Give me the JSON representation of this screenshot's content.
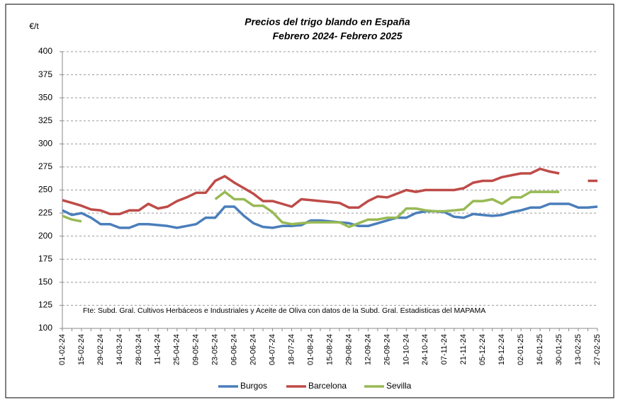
{
  "chart_data": {
    "type": "line",
    "title": "Precios del trigo blando en España",
    "subtitle": "Febrero 2024- Febrero 2025",
    "y_label": "€/t",
    "annotation": "Fte: Subd. Gral. Cultivos Herbáceos e Industriales y Aceite de Oliva  con datos de la Subd. Gral. Estadisticas del MAPAMA",
    "categories": [
      "01-02-24",
      null,
      "15-02-24",
      null,
      "29-02-24",
      null,
      "14-03-24",
      null,
      "28-03-24",
      null,
      "11-04-24",
      null,
      "25-04-24",
      null,
      "09-05-24",
      null,
      "23-05-24",
      null,
      "06-06-24",
      null,
      "20-06-24",
      null,
      "04-07-24",
      null,
      "18-07-24",
      null,
      "01-08-24",
      null,
      "15-08-24",
      null,
      "29-08-24",
      null,
      "12-09-24",
      null,
      "26-09-24",
      null,
      "10-10-24",
      null,
      "24-10-24",
      null,
      "07-11-24",
      null,
      "21-11-24",
      null,
      "05-12-24",
      null,
      "19-12-24",
      null,
      "02-01-25",
      null,
      "16-01-25",
      null,
      "30-01-25",
      null,
      "13-02-25",
      null,
      "27-02-25"
    ],
    "series": [
      {
        "name": "Burgos",
        "color": "#4a7ebb",
        "values": [
          228,
          223,
          225,
          220,
          213,
          213,
          209,
          209,
          213,
          213,
          212,
          211,
          209,
          211,
          213,
          220,
          220,
          232,
          232,
          222,
          214,
          210,
          209,
          211,
          211,
          212,
          217,
          217,
          216,
          215,
          214,
          211,
          211,
          214,
          217,
          220,
          220,
          225,
          227,
          227,
          226,
          221,
          220,
          224,
          223,
          222,
          223,
          226,
          228,
          231,
          231,
          235,
          235,
          235,
          231,
          231,
          232
        ]
      },
      {
        "name": "Barcelona",
        "color": "#be4b48",
        "values": [
          239,
          236,
          233,
          229,
          228,
          224,
          224,
          228,
          228,
          235,
          230,
          232,
          238,
          242,
          247,
          247,
          260,
          265,
          258,
          252,
          246,
          238,
          238,
          235,
          232,
          240,
          239,
          238,
          237,
          236,
          231,
          231,
          238,
          243,
          242,
          246,
          250,
          248,
          250,
          250,
          250,
          250,
          252,
          258,
          260,
          260,
          264,
          266,
          268,
          268,
          273,
          270,
          268,
          null,
          null,
          260,
          260
        ]
      },
      {
        "name": "Sevilla",
        "color": "#98b954",
        "values": [
          222,
          218,
          216,
          null,
          null,
          null,
          null,
          null,
          null,
          null,
          null,
          null,
          null,
          null,
          null,
          null,
          240,
          248,
          240,
          240,
          233,
          233,
          226,
          215,
          213,
          214,
          215,
          215,
          215,
          215,
          210,
          214,
          218,
          218,
          220,
          220,
          230,
          230,
          228,
          227,
          227,
          228,
          229,
          238,
          238,
          240,
          235,
          242,
          242,
          248,
          248,
          248,
          248,
          null,
          null,
          null,
          null
        ]
      }
    ],
    "ylim": [
      100,
      400
    ],
    "yticks": [
      100,
      125,
      150,
      175,
      200,
      225,
      250,
      275,
      300,
      325,
      350,
      375,
      400
    ],
    "grid": true
  }
}
